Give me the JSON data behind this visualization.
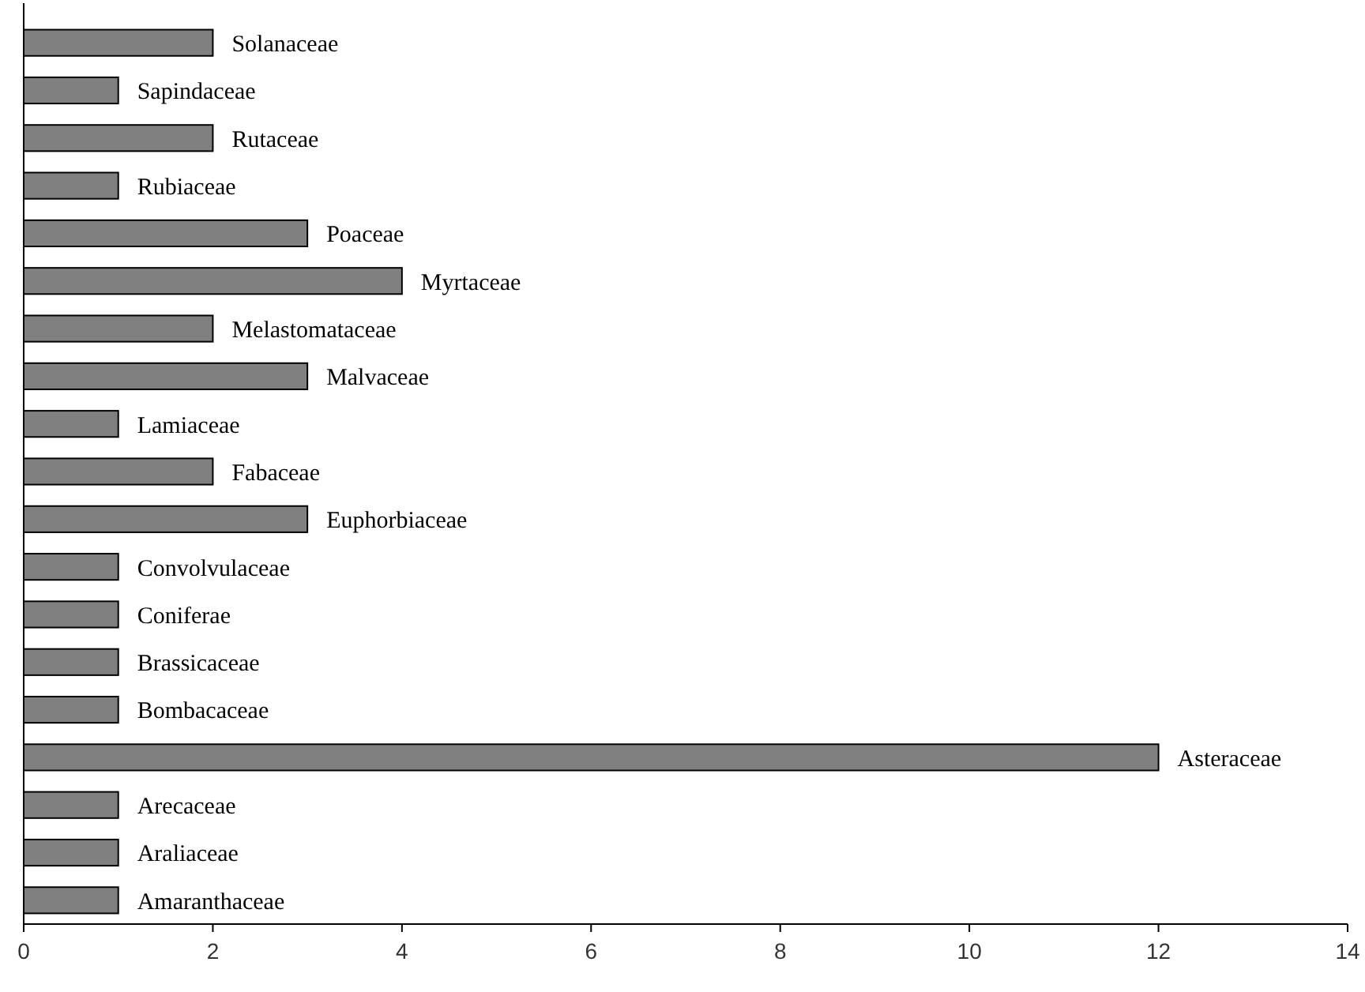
{
  "chart_data": {
    "type": "bar",
    "orientation": "horizontal",
    "categories": [
      "Solanaceae",
      "Sapindaceae",
      "Rutaceae",
      "Rubiaceae",
      "Poaceae",
      "Myrtaceae",
      "Melastomataceae",
      "Malvaceae",
      "Lamiaceae",
      "Fabaceae",
      "Euphorbiaceae",
      "Convolvulaceae",
      "Coniferae",
      "Brassicaceae",
      "Bombacaceae",
      "Asteraceae",
      "Arecaceae",
      "Araliaceae",
      "Amaranthaceae"
    ],
    "values": [
      2,
      1,
      2,
      1,
      3,
      4,
      2,
      3,
      1,
      2,
      3,
      1,
      1,
      1,
      1,
      12,
      1,
      1,
      1
    ],
    "color": "#808080",
    "xlim": [
      0,
      14
    ],
    "xticks": [
      0,
      2,
      4,
      6,
      8,
      10,
      12,
      14
    ]
  }
}
